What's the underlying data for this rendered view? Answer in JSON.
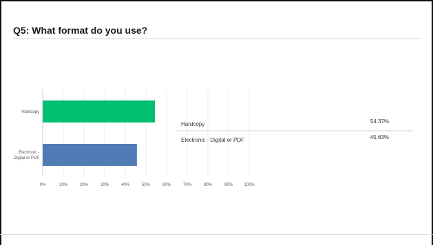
{
  "question": {
    "title": "Q5: What format do you use?"
  },
  "chart_data": {
    "type": "bar",
    "orientation": "horizontal",
    "categories": [
      "Hardcopy",
      "Electronic - Digital or PDF"
    ],
    "category_label_lines": [
      [
        "Hardcopy"
      ],
      [
        "Electronic -",
        "Digital or PDF"
      ]
    ],
    "values": [
      54.37,
      45.63
    ],
    "value_labels": [
      "54.37%",
      "45.63%"
    ],
    "xlim": [
      0,
      100
    ],
    "xticks": [
      "0%",
      "10%",
      "20%",
      "30%",
      "40%",
      "50%",
      "60%",
      "70%",
      "80%",
      "90%",
      "100%"
    ],
    "grid": true,
    "colors": [
      "#00bf6f",
      "#507cb6"
    ],
    "title": "",
    "xlabel": "",
    "ylabel": ""
  }
}
